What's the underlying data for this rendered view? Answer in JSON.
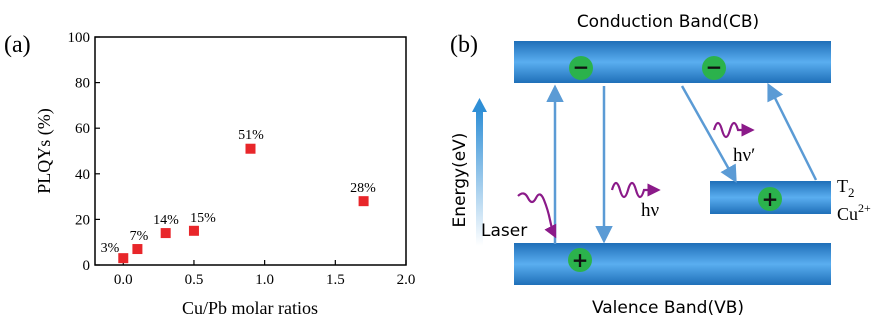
{
  "panel_a": {
    "label": "(a)",
    "point_labels": [
      "3%",
      "7%",
      "14%",
      "15%",
      "51%",
      "28%"
    ]
  },
  "panel_b": {
    "label": "(b)",
    "cb_title": "Conduction Band(CB)",
    "vb_title": "Valence Band(VB)",
    "energy_label": "Energy(eV)",
    "laser_label": "Laser",
    "hv_label": "hν",
    "hv_prime_label": "hν′",
    "t2_label": "T",
    "t2_sub": "2",
    "cu_label": "Cu",
    "cu_sup": "2+",
    "electron_symbol": "−",
    "hole_symbol": "+",
    "colors": {
      "band": "#2f8fd6",
      "arrow": "#5b9bd5",
      "charge_circle": "#2bb24c",
      "photon": "#8b1a89"
    }
  },
  "chart_data": [
    {
      "type": "scatter",
      "title": "",
      "xlabel": "Cu/Pb molar  ratios",
      "ylabel": "PLQYs (%)",
      "xlim": [
        -0.2,
        2.0
      ],
      "ylim": [
        0,
        100
      ],
      "xticks": [
        0.0,
        0.5,
        1.0,
        1.5,
        2.0
      ],
      "xtick_labels": [
        "0.0",
        "0.5",
        "1.0",
        "1.5",
        "2.0"
      ],
      "yticks": [
        0,
        20,
        40,
        60,
        80,
        100
      ],
      "ytick_labels": [
        "0",
        "20",
        "40",
        "60",
        "80",
        "100"
      ],
      "x": [
        0.0,
        0.1,
        0.3,
        0.5,
        0.9,
        1.7
      ],
      "y": [
        3,
        7,
        14,
        15,
        51,
        28
      ],
      "marker_color": "#e8262a",
      "grid": false
    }
  ]
}
